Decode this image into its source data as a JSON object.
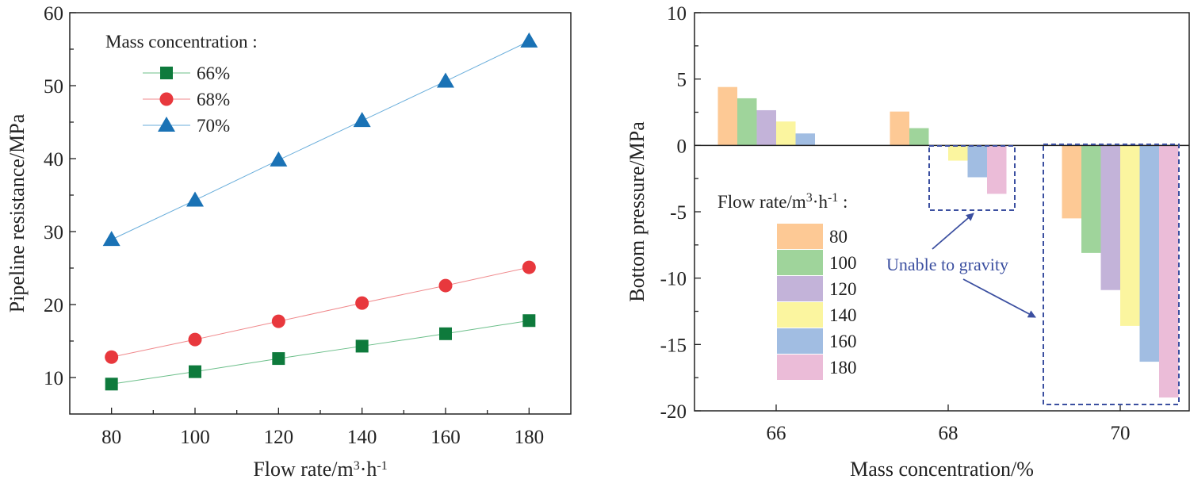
{
  "chart_data": [
    {
      "type": "line",
      "xlabel": "Flow rate/m³·h⁻¹",
      "ylabel": "Pipeline resistance/MPa",
      "xlim": [
        70,
        190
      ],
      "ylim": [
        5,
        60
      ],
      "xticks": [
        80,
        100,
        120,
        140,
        160,
        180
      ],
      "yticks": [
        10,
        20,
        30,
        40,
        50,
        60
      ],
      "x": [
        80,
        100,
        120,
        140,
        160,
        180
      ],
      "legend_title": "Mass concentration :",
      "legend_position": "top-left",
      "series": [
        {
          "name": "66%",
          "marker": "square",
          "color": "#0e7a3c",
          "line_color": "#6cbf8a",
          "values": [
            9.1,
            10.8,
            12.6,
            14.3,
            16.0,
            17.8
          ]
        },
        {
          "name": "68%",
          "marker": "circle",
          "color": "#e8383d",
          "line_color": "#f08a8d",
          "values": [
            12.8,
            15.2,
            17.7,
            20.2,
            22.6,
            25.1
          ]
        },
        {
          "name": "70%",
          "marker": "triangle",
          "color": "#1a72b5",
          "line_color": "#6aaedb",
          "values": [
            28.9,
            34.3,
            39.8,
            45.2,
            50.6,
            56.1
          ]
        }
      ]
    },
    {
      "type": "bar",
      "xlabel": "Mass concentration/%",
      "ylabel": "Bottom pressure/MPa",
      "ylim": [
        -20,
        10
      ],
      "yticks": [
        10,
        5,
        0,
        -5,
        -10,
        -15,
        -20
      ],
      "categories": [
        "66",
        "68",
        "70"
      ],
      "legend_title": "Flow rate/m³·h⁻¹ :",
      "legend_position": "left-middle",
      "series": [
        {
          "name": "80",
          "color": "#fdc995",
          "values": [
            4.4,
            2.55,
            -5.5
          ]
        },
        {
          "name": "100",
          "color": "#9fd49b",
          "values": [
            3.55,
            1.3,
            -8.1
          ]
        },
        {
          "name": "120",
          "color": "#c3b3d9",
          "values": [
            2.65,
            0,
            -10.9
          ]
        },
        {
          "name": "140",
          "color": "#fbf59f",
          "values": [
            1.8,
            -1.15,
            -13.6
          ]
        },
        {
          "name": "160",
          "color": "#a1bde2",
          "values": [
            0.9,
            -2.4,
            -16.3
          ]
        },
        {
          "name": "180",
          "color": "#ebbcd8",
          "values": [
            0,
            -3.65,
            -19.0
          ]
        }
      ],
      "annotation": "Unable to gravity",
      "annotation_color": "#3b4fa0"
    }
  ]
}
